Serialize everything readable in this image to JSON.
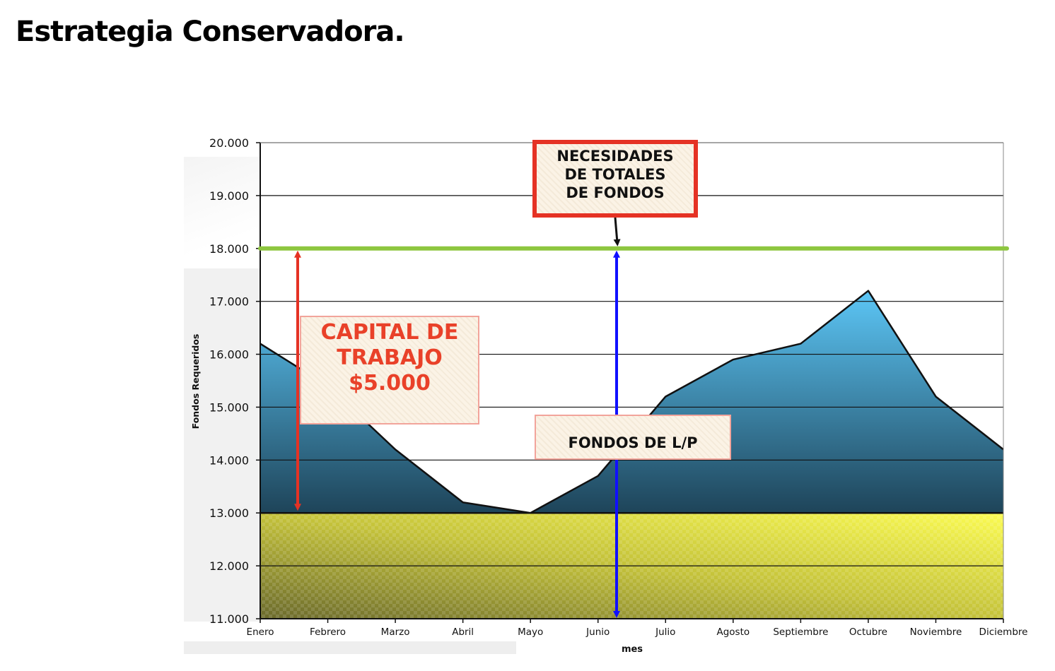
{
  "page": {
    "title": "Estrategia Conservadora."
  },
  "chart_data": {
    "type": "area",
    "categories": [
      "Enero",
      "Febrero",
      "Marzo",
      "Abril",
      "Mayo",
      "Junio",
      "Julio",
      "Agosto",
      "Septiembre",
      "Octubre",
      "Noviembre",
      "Diciembre"
    ],
    "series": [
      {
        "values": [
          16200,
          15400,
          14200,
          13200,
          13000,
          13700,
          15200,
          15900,
          16200,
          17200,
          15200,
          14200
        ]
      }
    ],
    "xlabel": "mes",
    "ylabel": "Fondos Requeridos",
    "ylim": [
      11000,
      20000
    ],
    "yticks": [
      "11.000",
      "12.000",
      "13.000",
      "14.000",
      "15.000",
      "16.000",
      "17.000",
      "18.000",
      "19.000",
      "20.000"
    ],
    "ytick_values": [
      11000,
      12000,
      13000,
      14000,
      15000,
      16000,
      17000,
      18000,
      19000,
      20000
    ],
    "permanent_level": 13000,
    "total_needs_level": 18000,
    "grid": true,
    "colors": {
      "area_top": "#5cc6f6",
      "area_bottom": "#1e4459",
      "permanent_fill_light": "#fbfb52",
      "permanent_fill_dark": "#6b6a2c",
      "total_line": "#8dc63f",
      "capital_arrow": "#e53224",
      "lp_arrow": "#1010ff",
      "pointer_arrow": "#111111"
    },
    "annotations": {
      "necesidades": [
        "NECESIDADES",
        "DE TOTALES",
        "DE FONDOS"
      ],
      "capital": [
        "CAPITAL DE",
        "TRABAJO",
        "$5.000"
      ],
      "fondos_lp": "FONDOS DE L/P"
    }
  }
}
